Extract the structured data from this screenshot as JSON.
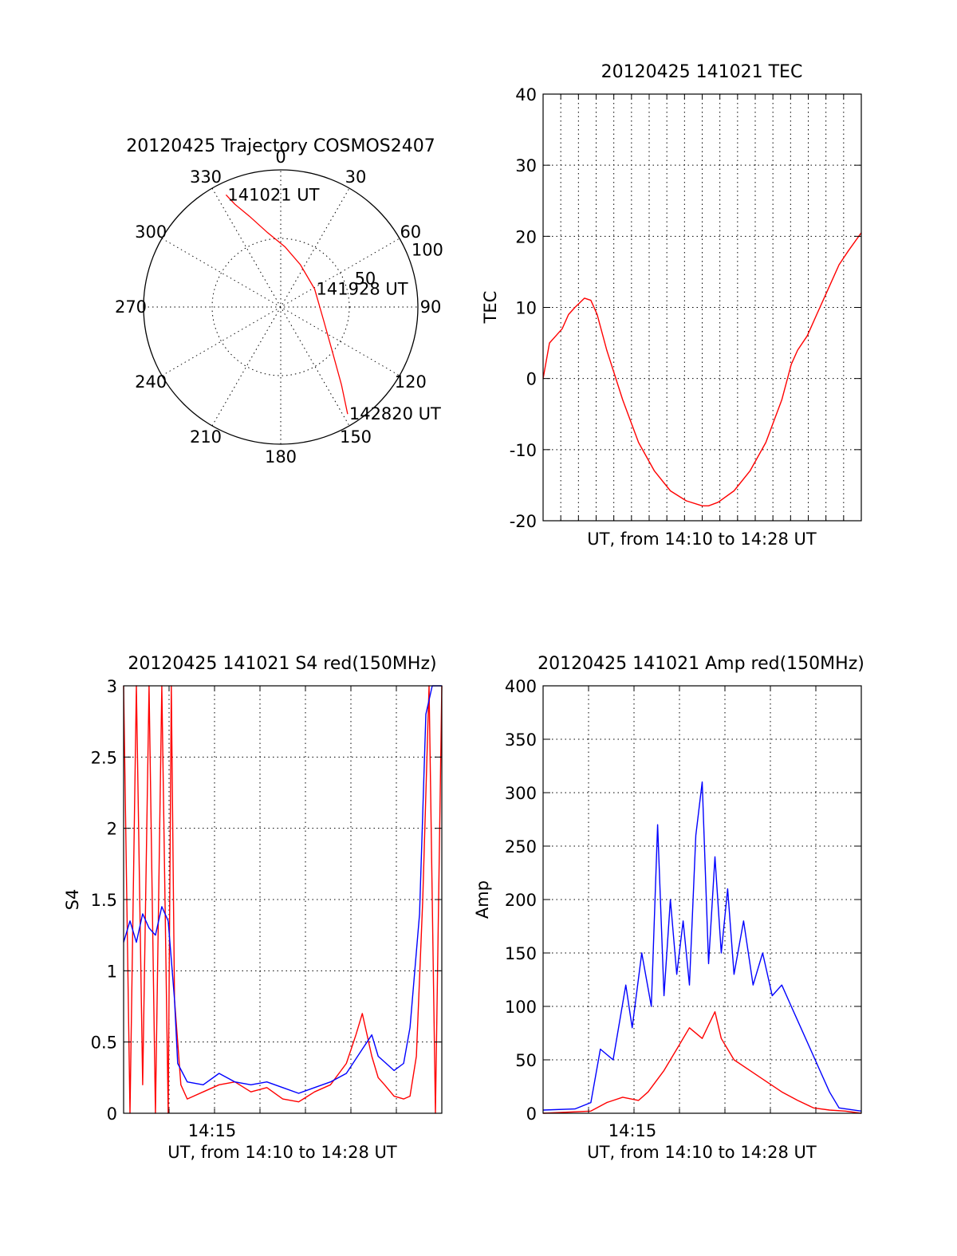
{
  "chart_data": [
    {
      "type": "polar",
      "title": "20120425 Trajectory COSMOS2407",
      "angle_labels": [
        "0",
        "30",
        "60",
        "90",
        "120",
        "150",
        "180",
        "210",
        "240",
        "270",
        "300",
        "330"
      ],
      "radius_labels": [
        "50",
        "100"
      ],
      "rlim": [
        0,
        100
      ],
      "series": [
        {
          "color": "#ff0000",
          "azimuth": [
            334,
            336,
            341,
            350,
            4,
            25,
            62,
            108,
            131,
            142,
            148
          ],
          "zenith_angle": [
            91,
            82,
            70,
            55,
            44,
            34,
            28,
            33,
            50,
            72,
            92
          ]
        }
      ],
      "annotations": [
        {
          "text": "141021 UT",
          "azimuth": 334,
          "zenith_angle": 91
        },
        {
          "text": "141928 UT",
          "azimuth": 62,
          "zenith_angle": 28
        },
        {
          "text": "142820 UT",
          "azimuth": 148,
          "zenith_angle": 92
        }
      ]
    },
    {
      "type": "line",
      "title": "20120425 141021 TEC",
      "xlabel": "UT, from 14:10 to 14:28 UT",
      "ylabel": "TEC",
      "ylim": [
        -20,
        40
      ],
      "yticks": [
        -20,
        -10,
        0,
        10,
        20,
        30,
        40
      ],
      "grid": true,
      "series": [
        {
          "color": "#ff0000",
          "x": [
            0.0,
            0.02,
            0.04,
            0.06,
            0.08,
            0.1,
            0.13,
            0.15,
            0.17,
            0.2,
            0.25,
            0.3,
            0.35,
            0.4,
            0.45,
            0.5,
            0.52,
            0.55,
            0.6,
            0.65,
            0.7,
            0.75,
            0.78,
            0.8,
            0.83,
            0.86,
            0.9,
            0.93,
            0.96,
            1.0
          ],
          "y": [
            0,
            5,
            6,
            7,
            9,
            10,
            11.3,
            11,
            9,
            4,
            -3,
            -9,
            -13,
            -15.8,
            -17.2,
            -17.9,
            -17.9,
            -17.4,
            -15.8,
            -13,
            -9,
            -3,
            2,
            4,
            6,
            9,
            13,
            16,
            18,
            20.5
          ]
        }
      ]
    },
    {
      "type": "line",
      "title": "20120425 141021 S4 red(150MHz)",
      "xlabel": "UT, from 14:10 to 14:28 UT",
      "ylabel": "S4",
      "xticklabels": [
        "14:15"
      ],
      "ylim": [
        0,
        3
      ],
      "yticks": [
        "0",
        "0.5",
        "1",
        "1.5",
        "2",
        "2.5",
        "3"
      ],
      "grid": true,
      "series": [
        {
          "color": "#ff0000",
          "x": [
            0.0,
            0.02,
            0.04,
            0.06,
            0.08,
            0.1,
            0.12,
            0.14,
            0.15,
            0.16,
            0.18,
            0.2,
            0.25,
            0.3,
            0.35,
            0.4,
            0.45,
            0.5,
            0.55,
            0.6,
            0.65,
            0.7,
            0.73,
            0.75,
            0.78,
            0.8,
            0.82,
            0.85,
            0.88,
            0.9,
            0.92,
            0.94,
            0.96,
            0.98,
            1.0
          ],
          "y": [
            3,
            0,
            3,
            0.2,
            3,
            0,
            3,
            0,
            3,
            0.8,
            0.2,
            0.1,
            0.15,
            0.2,
            0.22,
            0.15,
            0.18,
            0.1,
            0.08,
            0.15,
            0.2,
            0.35,
            0.55,
            0.7,
            0.4,
            0.25,
            0.2,
            0.12,
            0.1,
            0.12,
            0.4,
            1.5,
            3,
            0,
            3
          ]
        },
        {
          "color": "#0000ff",
          "x": [
            0.0,
            0.02,
            0.04,
            0.06,
            0.08,
            0.1,
            0.12,
            0.14,
            0.16,
            0.17,
            0.2,
            0.25,
            0.3,
            0.35,
            0.4,
            0.45,
            0.5,
            0.55,
            0.6,
            0.65,
            0.7,
            0.75,
            0.78,
            0.8,
            0.85,
            0.88,
            0.9,
            0.93,
            0.95,
            0.97,
            1.0
          ],
          "y": [
            1.2,
            1.35,
            1.2,
            1.4,
            1.3,
            1.25,
            1.45,
            1.35,
            0.8,
            0.35,
            0.22,
            0.2,
            0.28,
            0.22,
            0.2,
            0.22,
            0.18,
            0.14,
            0.18,
            0.22,
            0.28,
            0.45,
            0.55,
            0.4,
            0.3,
            0.35,
            0.6,
            1.4,
            2.8,
            3,
            3
          ]
        }
      ]
    },
    {
      "type": "line",
      "title": "20120425 141021 Amp red(150MHz)",
      "xlabel": "UT, from 14:10 to 14:28 UT",
      "ylabel": "Amp",
      "xticklabels": [
        "14:15"
      ],
      "ylim": [
        0,
        400
      ],
      "yticks": [
        0,
        50,
        100,
        150,
        200,
        250,
        300,
        350,
        400
      ],
      "grid": true,
      "series": [
        {
          "color": "#ff0000",
          "x": [
            0.0,
            0.15,
            0.2,
            0.25,
            0.3,
            0.33,
            0.38,
            0.42,
            0.46,
            0.5,
            0.54,
            0.56,
            0.6,
            0.65,
            0.7,
            0.75,
            0.8,
            0.85,
            0.9,
            0.95,
            1.0
          ],
          "y": [
            0,
            2,
            10,
            15,
            12,
            20,
            40,
            60,
            80,
            70,
            95,
            70,
            50,
            40,
            30,
            20,
            12,
            5,
            3,
            2,
            0
          ]
        },
        {
          "color": "#0000ff",
          "x": [
            0.0,
            0.1,
            0.15,
            0.18,
            0.22,
            0.26,
            0.28,
            0.31,
            0.34,
            0.36,
            0.38,
            0.4,
            0.42,
            0.44,
            0.46,
            0.48,
            0.5,
            0.52,
            0.54,
            0.56,
            0.58,
            0.6,
            0.63,
            0.66,
            0.69,
            0.72,
            0.75,
            0.78,
            0.81,
            0.84,
            0.87,
            0.9,
            0.93,
            1.0
          ],
          "y": [
            3,
            4,
            10,
            60,
            50,
            120,
            80,
            150,
            100,
            270,
            110,
            200,
            130,
            180,
            120,
            260,
            310,
            140,
            240,
            150,
            210,
            130,
            180,
            120,
            150,
            110,
            120,
            100,
            80,
            60,
            40,
            20,
            5,
            2
          ]
        }
      ]
    }
  ]
}
